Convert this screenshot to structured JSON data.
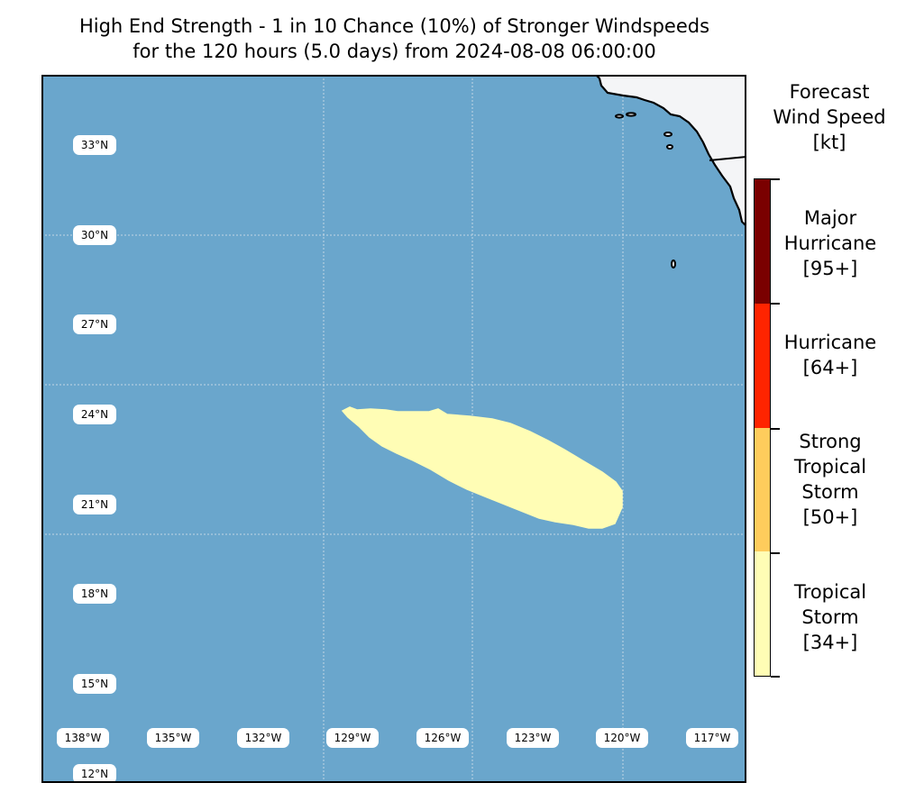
{
  "title": {
    "line1": "High End Strength - 1 in 10 Chance (10%) of Stronger Windspeeds",
    "line2": "for the 120 hours (5.0 days) from 2024-08-08 06:00:00"
  },
  "colors": {
    "ocean": "#6aa6cc",
    "land": "#f4f5f7",
    "coastline": "#000000",
    "gridline": "#d9e3ea",
    "tropical_storm": "#fffdb5",
    "strong_tropical_storm": "#fecc5c",
    "hurricane": "#ff2400",
    "major_hurricane": "#7a0000"
  },
  "map": {
    "lat_labels": [
      "33°N",
      "30°N",
      "27°N",
      "24°N",
      "21°N",
      "18°N",
      "15°N",
      "12°N"
    ],
    "lon_labels": [
      "138°W",
      "135°W",
      "132°W",
      "129°W",
      "126°W",
      "123°W",
      "120°W",
      "117°W"
    ],
    "wind_swath_category": "Tropical Storm"
  },
  "legend": {
    "title_lines": [
      "Forecast",
      "Wind Speed",
      "[kt]"
    ],
    "categories": [
      {
        "name": "major_hurricane",
        "lines": [
          "Major",
          "Hurricane",
          "[95+]"
        ]
      },
      {
        "name": "hurricane",
        "lines": [
          "Hurricane",
          "[64+]"
        ]
      },
      {
        "name": "strong_tropical_storm",
        "lines": [
          "Strong",
          "Tropical",
          "Storm",
          "[50+]"
        ]
      },
      {
        "name": "tropical_storm",
        "lines": [
          "Tropical",
          "Storm",
          "[34+]"
        ]
      }
    ]
  }
}
